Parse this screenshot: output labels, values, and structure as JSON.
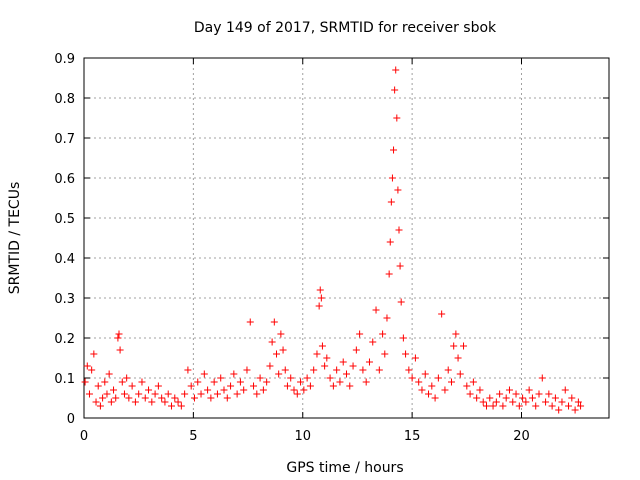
{
  "chart_data": {
    "type": "scatter",
    "title": "Day 149 of 2017, SRMTID for receiver sbok",
    "xlabel": "GPS time / hours",
    "ylabel": "SRMTID / TECUs",
    "xlim": [
      0,
      24
    ],
    "ylim": [
      0,
      0.9
    ],
    "xticks": [
      0,
      5,
      10,
      15,
      20
    ],
    "xtick_labels": [
      "0",
      "5",
      "10",
      "15",
      "20"
    ],
    "yticks": [
      0,
      0.1,
      0.2,
      0.3,
      0.4,
      0.5,
      0.6,
      0.7,
      0.8,
      0.9
    ],
    "ytick_labels": [
      "0",
      "0.1",
      "0.2",
      "0.3",
      "0.4",
      "0.5",
      "0.6",
      "0.7",
      "0.8",
      "0.9"
    ],
    "grid": true,
    "marker": "+",
    "color": "#ff0000",
    "series": [
      {
        "name": "SRMTID",
        "points": [
          [
            0.05,
            0.09
          ],
          [
            0.15,
            0.13
          ],
          [
            0.25,
            0.06
          ],
          [
            0.35,
            0.12
          ],
          [
            0.45,
            0.16
          ],
          [
            0.55,
            0.04
          ],
          [
            0.65,
            0.08
          ],
          [
            0.75,
            0.03
          ],
          [
            0.85,
            0.05
          ],
          [
            0.95,
            0.09
          ],
          [
            1.05,
            0.06
          ],
          [
            1.15,
            0.11
          ],
          [
            1.25,
            0.04
          ],
          [
            1.35,
            0.07
          ],
          [
            1.45,
            0.05
          ],
          [
            1.55,
            0.2
          ],
          [
            1.6,
            0.21
          ],
          [
            1.65,
            0.17
          ],
          [
            1.75,
            0.09
          ],
          [
            1.85,
            0.06
          ],
          [
            1.95,
            0.1
          ],
          [
            2.05,
            0.05
          ],
          [
            2.2,
            0.08
          ],
          [
            2.35,
            0.04
          ],
          [
            2.5,
            0.06
          ],
          [
            2.65,
            0.09
          ],
          [
            2.8,
            0.05
          ],
          [
            2.95,
            0.07
          ],
          [
            3.1,
            0.04
          ],
          [
            3.25,
            0.06
          ],
          [
            3.4,
            0.08
          ],
          [
            3.55,
            0.05
          ],
          [
            3.7,
            0.04
          ],
          [
            3.85,
            0.06
          ],
          [
            4.0,
            0.03
          ],
          [
            4.15,
            0.05
          ],
          [
            4.3,
            0.04
          ],
          [
            4.45,
            0.03
          ],
          [
            4.6,
            0.06
          ],
          [
            4.75,
            0.12
          ],
          [
            4.9,
            0.08
          ],
          [
            5.05,
            0.05
          ],
          [
            5.2,
            0.09
          ],
          [
            5.35,
            0.06
          ],
          [
            5.5,
            0.11
          ],
          [
            5.65,
            0.07
          ],
          [
            5.8,
            0.05
          ],
          [
            5.95,
            0.09
          ],
          [
            6.1,
            0.06
          ],
          [
            6.25,
            0.1
          ],
          [
            6.4,
            0.07
          ],
          [
            6.55,
            0.05
          ],
          [
            6.7,
            0.08
          ],
          [
            6.85,
            0.11
          ],
          [
            7.0,
            0.06
          ],
          [
            7.15,
            0.09
          ],
          [
            7.3,
            0.07
          ],
          [
            7.45,
            0.12
          ],
          [
            7.6,
            0.24
          ],
          [
            7.75,
            0.08
          ],
          [
            7.9,
            0.06
          ],
          [
            8.05,
            0.1
          ],
          [
            8.2,
            0.07
          ],
          [
            8.35,
            0.09
          ],
          [
            8.5,
            0.13
          ],
          [
            8.6,
            0.19
          ],
          [
            8.7,
            0.24
          ],
          [
            8.8,
            0.16
          ],
          [
            8.9,
            0.11
          ],
          [
            9.0,
            0.21
          ],
          [
            9.1,
            0.17
          ],
          [
            9.2,
            0.12
          ],
          [
            9.3,
            0.08
          ],
          [
            9.45,
            0.1
          ],
          [
            9.6,
            0.07
          ],
          [
            9.75,
            0.06
          ],
          [
            9.9,
            0.09
          ],
          [
            10.05,
            0.07
          ],
          [
            10.2,
            0.1
          ],
          [
            10.35,
            0.08
          ],
          [
            10.5,
            0.12
          ],
          [
            10.65,
            0.16
          ],
          [
            10.75,
            0.28
          ],
          [
            10.8,
            0.32
          ],
          [
            10.85,
            0.3
          ],
          [
            10.9,
            0.18
          ],
          [
            11.0,
            0.13
          ],
          [
            11.1,
            0.15
          ],
          [
            11.25,
            0.1
          ],
          [
            11.4,
            0.08
          ],
          [
            11.55,
            0.12
          ],
          [
            11.7,
            0.09
          ],
          [
            11.85,
            0.14
          ],
          [
            12.0,
            0.11
          ],
          [
            12.15,
            0.08
          ],
          [
            12.3,
            0.13
          ],
          [
            12.45,
            0.17
          ],
          [
            12.6,
            0.21
          ],
          [
            12.75,
            0.12
          ],
          [
            12.9,
            0.09
          ],
          [
            13.05,
            0.14
          ],
          [
            13.2,
            0.19
          ],
          [
            13.35,
            0.27
          ],
          [
            13.5,
            0.12
          ],
          [
            13.65,
            0.21
          ],
          [
            13.75,
            0.16
          ],
          [
            13.85,
            0.25
          ],
          [
            13.95,
            0.36
          ],
          [
            14.0,
            0.44
          ],
          [
            14.05,
            0.54
          ],
          [
            14.1,
            0.6
          ],
          [
            14.15,
            0.67
          ],
          [
            14.2,
            0.82
          ],
          [
            14.25,
            0.87
          ],
          [
            14.3,
            0.75
          ],
          [
            14.35,
            0.57
          ],
          [
            14.4,
            0.47
          ],
          [
            14.45,
            0.38
          ],
          [
            14.5,
            0.29
          ],
          [
            14.6,
            0.2
          ],
          [
            14.7,
            0.16
          ],
          [
            14.85,
            0.12
          ],
          [
            15.0,
            0.1
          ],
          [
            15.15,
            0.15
          ],
          [
            15.3,
            0.09
          ],
          [
            15.45,
            0.07
          ],
          [
            15.6,
            0.11
          ],
          [
            15.75,
            0.06
          ],
          [
            15.9,
            0.08
          ],
          [
            16.05,
            0.05
          ],
          [
            16.2,
            0.1
          ],
          [
            16.35,
            0.26
          ],
          [
            16.5,
            0.07
          ],
          [
            16.65,
            0.12
          ],
          [
            16.8,
            0.09
          ],
          [
            16.9,
            0.18
          ],
          [
            17.0,
            0.21
          ],
          [
            17.1,
            0.15
          ],
          [
            17.2,
            0.11
          ],
          [
            17.35,
            0.18
          ],
          [
            17.5,
            0.08
          ],
          [
            17.65,
            0.06
          ],
          [
            17.8,
            0.09
          ],
          [
            17.95,
            0.05
          ],
          [
            18.1,
            0.07
          ],
          [
            18.25,
            0.04
          ],
          [
            18.4,
            0.03
          ],
          [
            18.55,
            0.05
          ],
          [
            18.7,
            0.03
          ],
          [
            18.85,
            0.04
          ],
          [
            19.0,
            0.06
          ],
          [
            19.15,
            0.03
          ],
          [
            19.3,
            0.05
          ],
          [
            19.45,
            0.07
          ],
          [
            19.6,
            0.04
          ],
          [
            19.75,
            0.06
          ],
          [
            19.9,
            0.03
          ],
          [
            20.05,
            0.05
          ],
          [
            20.2,
            0.04
          ],
          [
            20.35,
            0.07
          ],
          [
            20.5,
            0.05
          ],
          [
            20.65,
            0.03
          ],
          [
            20.8,
            0.06
          ],
          [
            20.95,
            0.1
          ],
          [
            21.1,
            0.04
          ],
          [
            21.25,
            0.06
          ],
          [
            21.4,
            0.03
          ],
          [
            21.55,
            0.05
          ],
          [
            21.7,
            0.02
          ],
          [
            21.85,
            0.04
          ],
          [
            22.0,
            0.07
          ],
          [
            22.15,
            0.03
          ],
          [
            22.3,
            0.05
          ],
          [
            22.45,
            0.02
          ],
          [
            22.6,
            0.04
          ],
          [
            22.7,
            0.03
          ]
        ]
      }
    ]
  }
}
